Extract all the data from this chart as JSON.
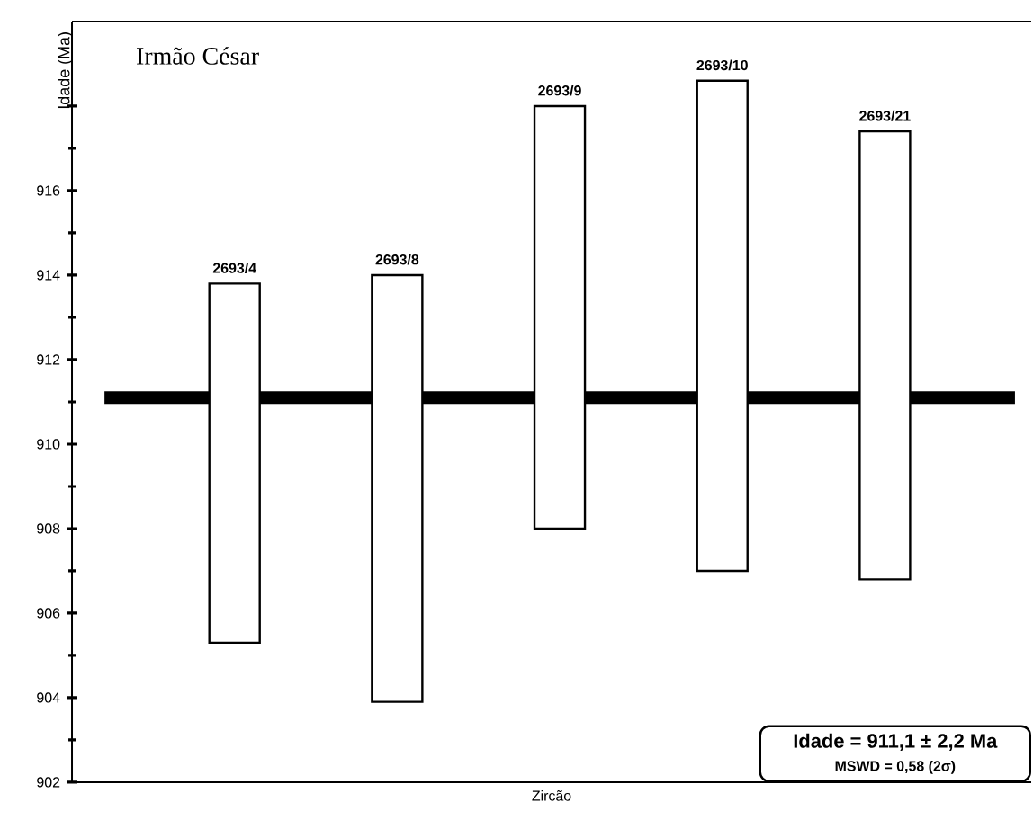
{
  "chart_data": {
    "type": "bar",
    "title": "Irmão César",
    "xlabel": "Zircão",
    "ylabel": "Idade (Ma)",
    "categories": [
      "2693/4",
      "2693/8",
      "2693/9",
      "2693/10",
      "2693/21"
    ],
    "base": [
      905.3,
      903.9,
      908.0,
      907.0,
      906.8
    ],
    "values": [
      8.5,
      10.1,
      10.0,
      11.6,
      10.6
    ],
    "color": "#ffffff",
    "ylim": [
      902,
      920
    ],
    "yticks": [
      902,
      904,
      906,
      908,
      910,
      912,
      914,
      916,
      {
        "value": 918,
        "label": null
      }
    ],
    "tick_labels": "y",
    "ref_lines": [
      {
        "axis": "y",
        "value": 911.1,
        "color": "#000000"
      }
    ],
    "annotations": [
      "Idade = 911,1 ± 2,2 Ma",
      "MSWD = 0,58 (2σ)"
    ]
  }
}
